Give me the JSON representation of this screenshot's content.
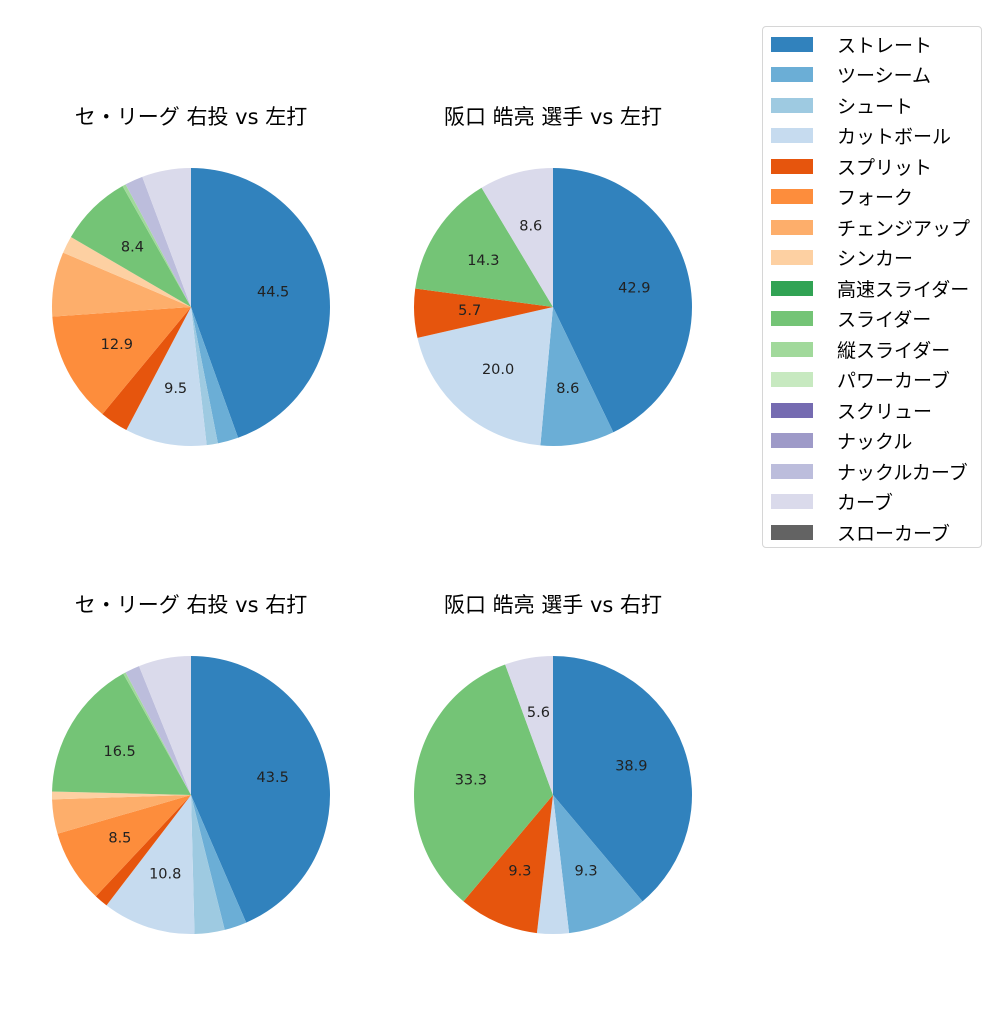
{
  "legend": {
    "items": [
      {
        "label": "ストレート",
        "color": "#3182bd"
      },
      {
        "label": "ツーシーム",
        "color": "#6baed6"
      },
      {
        "label": "シュート",
        "color": "#9ecae1"
      },
      {
        "label": "カットボール",
        "color": "#c6dbef"
      },
      {
        "label": "スプリット",
        "color": "#e6550d"
      },
      {
        "label": "フォーク",
        "color": "#fd8d3c"
      },
      {
        "label": "チェンジアップ",
        "color": "#fdae6b"
      },
      {
        "label": "シンカー",
        "color": "#fdd0a2"
      },
      {
        "label": "高速スライダー",
        "color": "#31a354"
      },
      {
        "label": "スライダー",
        "color": "#74c476"
      },
      {
        "label": "縦スライダー",
        "color": "#a1d99b"
      },
      {
        "label": "パワーカーブ",
        "color": "#c7e9c0"
      },
      {
        "label": "スクリュー",
        "color": "#756bb1"
      },
      {
        "label": "ナックル",
        "color": "#9e9ac8"
      },
      {
        "label": "ナックルカーブ",
        "color": "#bcbddc"
      },
      {
        "label": "カーブ",
        "color": "#dadaeb"
      },
      {
        "label": "スローカーブ",
        "color": "#636363"
      }
    ]
  },
  "chart_data": [
    {
      "type": "pie",
      "title": "セ・リーグ 右投 vs 左打",
      "categories": [
        "ストレート",
        "ツーシーム",
        "シュート",
        "カットボール",
        "スプリット",
        "フォーク",
        "チェンジアップ",
        "シンカー",
        "スライダー",
        "縦スライダー",
        "ナックルカーブ",
        "カーブ"
      ],
      "values": [
        44.5,
        2.4,
        1.3,
        9.5,
        3.3,
        12.9,
        7.5,
        2.0,
        8.4,
        0.4,
        2.1,
        5.7
      ],
      "labels_shown": [
        "44.5",
        "",
        "",
        "9.5",
        "",
        "12.9",
        "",
        "",
        "8.4",
        "",
        "",
        ""
      ],
      "start_angle": 90,
      "direction": "clockwise"
    },
    {
      "type": "pie",
      "title": "阪口 皓亮 選手 vs 左打",
      "categories": [
        "ストレート",
        "ツーシーム",
        "カットボール",
        "スプリット",
        "スライダー",
        "カーブ"
      ],
      "values": [
        42.9,
        8.6,
        20.0,
        5.7,
        14.3,
        8.6
      ],
      "labels_shown": [
        "42.9",
        "8.6",
        "20.0",
        "5.7",
        "14.3",
        "8.6"
      ],
      "start_angle": 90,
      "direction": "clockwise"
    },
    {
      "type": "pie",
      "title": "セ・リーグ 右投 vs 右打",
      "categories": [
        "ストレート",
        "ツーシーム",
        "シュート",
        "カットボール",
        "スプリット",
        "フォーク",
        "チェンジアップ",
        "シンカー",
        "スライダー",
        "縦スライダー",
        "ナックルカーブ",
        "カーブ"
      ],
      "values": [
        43.5,
        2.6,
        3.5,
        10.8,
        1.6,
        8.5,
        4.0,
        0.9,
        16.5,
        0.3,
        1.7,
        6.1
      ],
      "labels_shown": [
        "43.5",
        "",
        "",
        "10.8",
        "",
        "8.5",
        "",
        "",
        "16.5",
        "",
        "",
        ""
      ],
      "start_angle": 90,
      "direction": "clockwise"
    },
    {
      "type": "pie",
      "title": "阪口 皓亮 選手 vs 右打",
      "categories": [
        "ストレート",
        "ツーシーム",
        "カットボール",
        "スプリット",
        "スライダー",
        "カーブ"
      ],
      "values": [
        38.9,
        9.3,
        3.7,
        9.3,
        33.3,
        5.6
      ],
      "labels_shown": [
        "38.9",
        "9.3",
        "",
        "9.3",
        "33.3",
        "5.6"
      ],
      "start_angle": 90,
      "direction": "clockwise"
    }
  ],
  "panels": [
    {
      "title": "セ・リーグ 右投 vs 左打"
    },
    {
      "title": "阪口 皓亮 選手 vs 左打"
    },
    {
      "title": "セ・リーグ 右投 vs 右打"
    },
    {
      "title": "阪口 皓亮 選手 vs 右打"
    }
  ]
}
